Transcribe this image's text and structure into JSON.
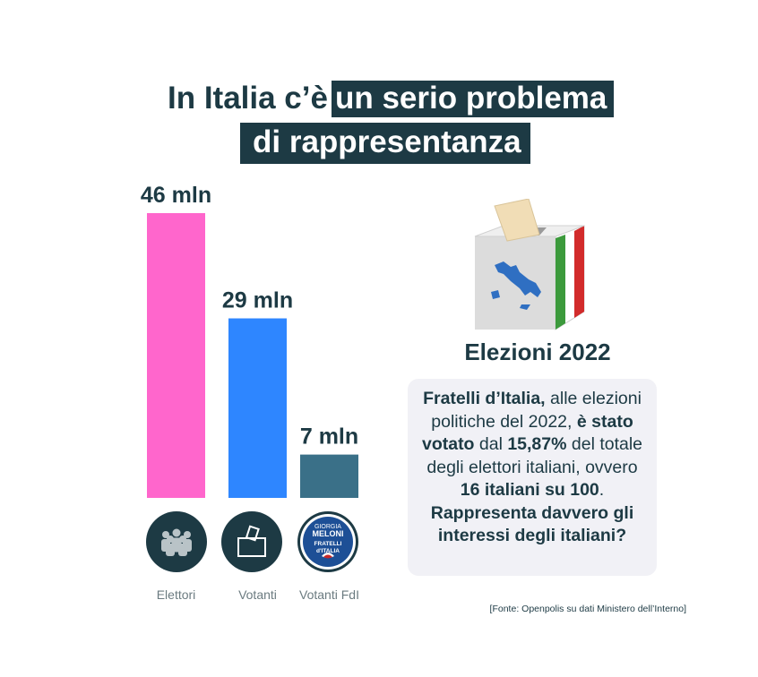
{
  "title": {
    "line1_plain": "In Italia c’è",
    "line1_highlight": "un serio problema",
    "line2": "di rappresentanza"
  },
  "colors": {
    "dark": "#1d3a44",
    "elettori": "#ff66cc",
    "votanti": "#2e86ff",
    "votanti_fdl": "#3a7088"
  },
  "chart_data": {
    "type": "bar",
    "categories": [
      "Elettori",
      "Votanti",
      "Votanti FdI"
    ],
    "values": [
      46,
      29,
      7
    ],
    "data_labels": [
      "46 mln",
      "29 mln",
      "7 mln"
    ],
    "title": "",
    "xlabel": "",
    "ylabel": "",
    "ylim": [
      0,
      46
    ],
    "category_icons": [
      "people-group-icon",
      "ballot-box-icon",
      "fdi-logo-icon"
    ],
    "logo_text": [
      "GIORGIA",
      "MELONI",
      "FRATELLI",
      "d'ITALIA"
    ]
  },
  "side": {
    "box_title": "Elezioni 2022",
    "card": {
      "p1_bold": "Fratelli d’Italia,",
      "p1_rest": " alle elezioni politiche del 2022, ",
      "p2_bold": "è stato votato",
      "p2_rest": " dal ",
      "p3_bold": "15,87%",
      "p3_rest": " del totale degli elettori italiani, ovvero ",
      "p4_bold": "16 italiani su 100",
      "p4_rest": ".",
      "question": "Rappresenta davvero gli interessi degli italiani?"
    },
    "ballot_icon": "ballot-box-italy-icon"
  },
  "source": "[Fonte: Openpolis su dati Ministero dell’Interno]"
}
